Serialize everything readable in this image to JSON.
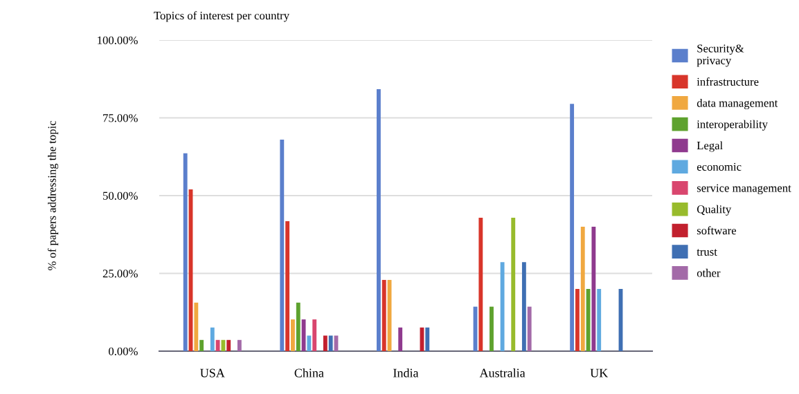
{
  "chart_data": {
    "type": "bar",
    "title": "Topics of interest per country",
    "ylabel": "% of papers addressing the topic",
    "categories": [
      "USA",
      "China",
      "India",
      "Australia",
      "UK"
    ],
    "series": [
      {
        "name": "Security&\nprivacy",
        "color": "#5b7fcc",
        "values": [
          63.6,
          68.0,
          84.2,
          14.3,
          79.5
        ]
      },
      {
        "name": "infrastructure",
        "color": "#d8352a",
        "values": [
          52.0,
          41.8,
          22.9,
          42.9,
          20.0
        ]
      },
      {
        "name": "data management",
        "color": "#f0a840",
        "values": [
          15.6,
          10.2,
          22.9,
          0,
          40.0
        ]
      },
      {
        "name": "interoperability",
        "color": "#5ea22e",
        "values": [
          3.6,
          15.6,
          0,
          14.3,
          20.0
        ]
      },
      {
        "name": "Legal",
        "color": "#8f3a8e",
        "values": [
          0,
          10.2,
          7.6,
          0,
          40.0
        ]
      },
      {
        "name": "economic",
        "color": "#5fa9e0",
        "values": [
          7.6,
          5.0,
          0,
          28.6,
          20.0
        ]
      },
      {
        "name": "service management",
        "color": "#d9466e",
        "values": [
          3.6,
          10.2,
          0,
          0,
          0
        ]
      },
      {
        "name": "Quality",
        "color": "#98bb2c",
        "values": [
          3.6,
          0,
          0,
          42.9,
          0
        ]
      },
      {
        "name": "software",
        "color": "#c2202e",
        "values": [
          3.6,
          5.0,
          7.6,
          0,
          0
        ]
      },
      {
        "name": "trust",
        "color": "#3f6fb3",
        "values": [
          0,
          5.0,
          7.6,
          28.6,
          20.0
        ]
      },
      {
        "name": "other",
        "color": "#a36aa8",
        "values": [
          3.6,
          5.0,
          0,
          14.3,
          0
        ]
      }
    ],
    "ylim": [
      0,
      100
    ],
    "yticks": [
      {
        "value": 0,
        "label": "0.00%"
      },
      {
        "value": 25,
        "label": "25.00%"
      },
      {
        "value": 50,
        "label": "50.00%"
      },
      {
        "value": 75,
        "label": "75.00%"
      },
      {
        "value": 100,
        "label": "100.00%"
      }
    ],
    "grid": "y",
    "legend": "right"
  }
}
